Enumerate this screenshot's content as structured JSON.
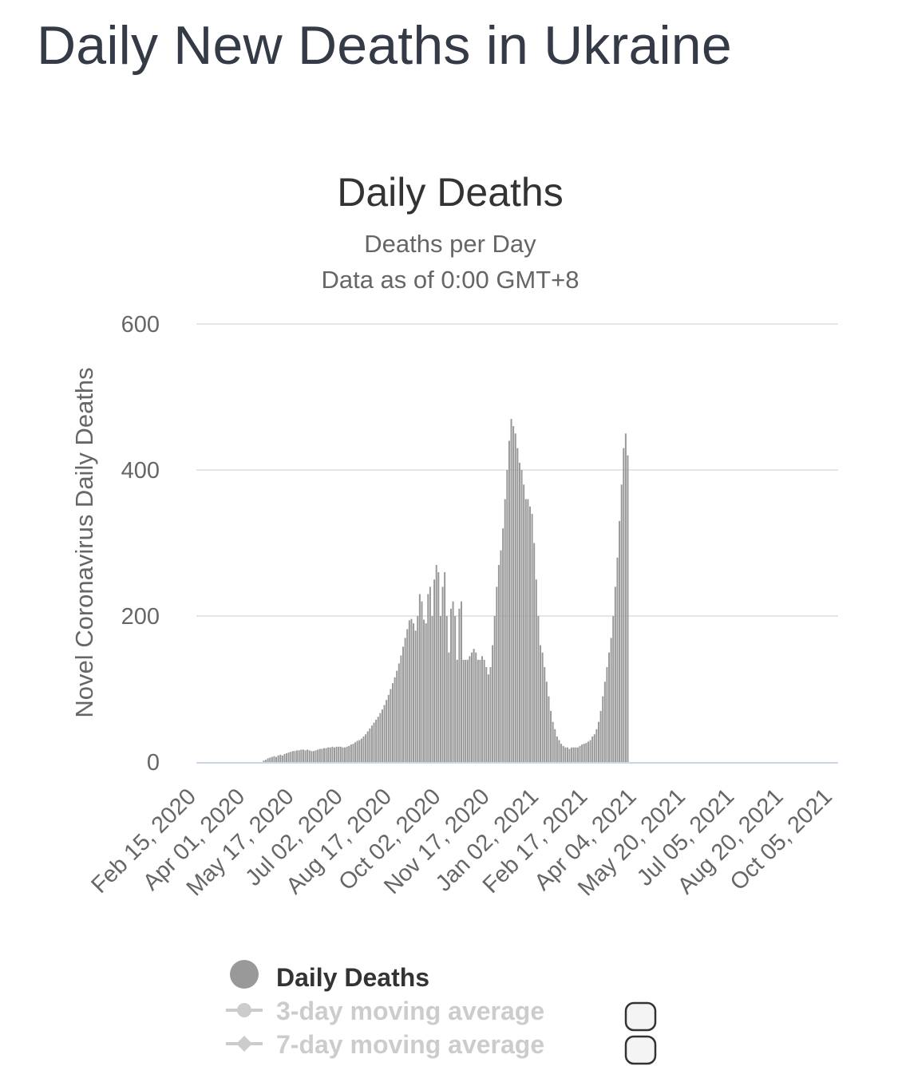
{
  "page": {
    "title": "Daily New Deaths in Ukraine"
  },
  "chart_data": {
    "type": "bar",
    "title": "Daily Deaths",
    "subtitle": "Deaths per Day",
    "subtitle2": "Data as of 0:00 GMT+8",
    "ylabel": "Novel Coronavirus Daily Deaths",
    "xlabel": "",
    "ylim": [
      0,
      600
    ],
    "yticks": [
      0,
      200,
      400,
      600
    ],
    "grid": true,
    "legend_position": "bottom",
    "colors": {
      "bars": "#999999",
      "grid": "#e6e6e6",
      "baseline": "#ccd6eb",
      "axis_text": "#666666",
      "title_text": "#333333",
      "legend_inactive": "#cccccc"
    },
    "x_start": "2020-02-15",
    "x_end": "2021-10-24",
    "xtick_labels": [
      "Feb 15, 2020",
      "Apr 01, 2020",
      "May 17, 2020",
      "Jul 02, 2020",
      "Aug 17, 2020",
      "Oct 02, 2020",
      "Nov 17, 2020",
      "Jan 02, 2021",
      "Feb 17, 2021",
      "Apr 04, 2021",
      "May 20, 2021",
      "Jul 05, 2021",
      "Aug 20, 2021",
      "Oct 05, 2021"
    ],
    "series": [
      {
        "name": "Daily Deaths",
        "interval_days": 2,
        "values": [
          0,
          0,
          0,
          0,
          0,
          0,
          0,
          0,
          0,
          0,
          0,
          0,
          0,
          0,
          0,
          0,
          0,
          0,
          0,
          0,
          0,
          0,
          0,
          0,
          0,
          0,
          0,
          0,
          0,
          0,
          0,
          0,
          2,
          3,
          5,
          6,
          7,
          8,
          7,
          9,
          10,
          9,
          11,
          12,
          13,
          14,
          15,
          15,
          16,
          16,
          17,
          17,
          16,
          17,
          16,
          15,
          15,
          16,
          17,
          18,
          18,
          19,
          19,
          20,
          20,
          21,
          20,
          21,
          21,
          21,
          20,
          20,
          21,
          22,
          24,
          25,
          27,
          29,
          30,
          32,
          35,
          38,
          42,
          46,
          50,
          54,
          58,
          62,
          67,
          72,
          78,
          85,
          92,
          100,
          108,
          116,
          125,
          135,
          146,
          158,
          170,
          182,
          194,
          196,
          190,
          180,
          200,
          230,
          220,
          195,
          190,
          230,
          240,
          200,
          250,
          270,
          260,
          200,
          240,
          260,
          200,
          150,
          210,
          220,
          200,
          140,
          210,
          220,
          140,
          140,
          140,
          145,
          150,
          155,
          150,
          140,
          140,
          145,
          140,
          130,
          120,
          130,
          160,
          200,
          240,
          270,
          290,
          320,
          360,
          400,
          440,
          470,
          460,
          450,
          430,
          410,
          400,
          380,
          360,
          360,
          350,
          340,
          300,
          250,
          200,
          160,
          150,
          130,
          110,
          90,
          70,
          55,
          45,
          35,
          30,
          25,
          22,
          20,
          20,
          18,
          20,
          20,
          20,
          20,
          22,
          24,
          25,
          26,
          28,
          30,
          35,
          38,
          45,
          55,
          70,
          90,
          110,
          130,
          150,
          170,
          200,
          240,
          280,
          330,
          380,
          430,
          450,
          420
        ]
      }
    ],
    "legend": [
      {
        "label": "Daily Deaths",
        "active": true,
        "marker": "circle"
      },
      {
        "label": "3-day moving average",
        "active": false,
        "marker": "circle-line"
      },
      {
        "label": "7-day moving average",
        "active": false,
        "marker": "diamond-line"
      }
    ]
  }
}
